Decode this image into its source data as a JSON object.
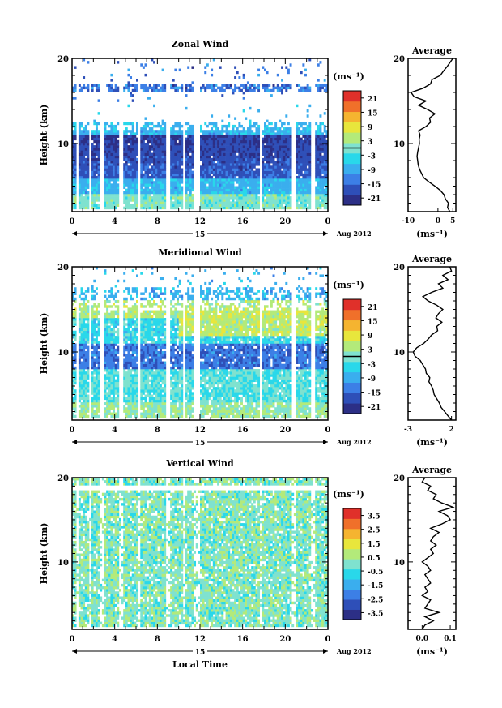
{
  "figure": {
    "xlabel": "Local Time",
    "ylabel": "Height (km)",
    "date_label": "Aug 2012",
    "day_label": "15",
    "unit_label": "(ms⁻¹)",
    "avg_title": "Average"
  },
  "chart_data": [
    {
      "type": "heatmap",
      "title": "Zonal Wind",
      "xlabel": "",
      "ylabel": "Height (km)",
      "xlim": [
        0,
        24
      ],
      "ylim": [
        2,
        20
      ],
      "xticks": [
        "0",
        "4",
        "8",
        "12",
        "16",
        "20",
        "0"
      ],
      "yticks": [
        {
          "v": 10,
          "label": "10"
        },
        {
          "v": 20,
          "label": "20"
        }
      ],
      "colorbar": {
        "min": -24,
        "max": 24,
        "ticks": [
          "21",
          "15",
          "9",
          "3",
          "-3",
          "-9",
          "-15",
          "-21"
        ],
        "zero_line": 0
      },
      "profile_title": "Average",
      "profile_xlim": [
        -10,
        6
      ],
      "profile_xticks": [
        "-10",
        "0",
        "5"
      ],
      "profile_yticks": [
        "10",
        "20"
      ],
      "profile": {
        "height": [
          2,
          2.5,
          3,
          3.5,
          4,
          4.5,
          5,
          5.5,
          6,
          6.5,
          7,
          7.5,
          8,
          8.5,
          9,
          9.5,
          10,
          10.5,
          11,
          11.5,
          12,
          12.5,
          13,
          13.5,
          14,
          14.5,
          15,
          15.5,
          16,
          16.5,
          17,
          17.5,
          18,
          18.5,
          19,
          19.5,
          20
        ],
        "value": [
          4.0,
          3.2,
          3.5,
          2.5,
          2.0,
          0.8,
          -1.0,
          -3.0,
          -4.8,
          -5.5,
          -6.2,
          -6.6,
          -6.8,
          -7.0,
          -6.8,
          -6.5,
          -6.2,
          -6.3,
          -6.0,
          -6.5,
          -4.0,
          -2.5,
          -2.8,
          -1.0,
          -3.5,
          -6.5,
          -4.0,
          -8.0,
          -9.0,
          -5.0,
          -2.5,
          -2.0,
          0.8,
          1.8,
          3.0,
          4.0,
          5.0
        ]
      }
    },
    {
      "type": "heatmap",
      "title": "Meridional Wind",
      "xlabel": "",
      "ylabel": "Height (km)",
      "xlim": [
        0,
        24
      ],
      "ylim": [
        2,
        20
      ],
      "xticks": [
        "0",
        "4",
        "8",
        "12",
        "16",
        "20",
        "0"
      ],
      "yticks": [
        {
          "v": 10,
          "label": "10"
        },
        {
          "v": 20,
          "label": "20"
        }
      ],
      "colorbar": {
        "min": -24,
        "max": 24,
        "ticks": [
          "21",
          "15",
          "9",
          "3",
          "-3",
          "-9",
          "-15",
          "-21"
        ],
        "zero_line": 0
      },
      "profile_title": "Average",
      "profile_xlim": [
        -3,
        2.5
      ],
      "profile_xticks": [
        "-3",
        "2"
      ],
      "profile_yticks": [
        "10",
        "20"
      ],
      "profile": {
        "height": [
          2,
          2.5,
          3,
          3.5,
          4,
          4.5,
          5,
          5.5,
          6,
          6.5,
          7,
          7.5,
          8,
          8.5,
          9,
          9.5,
          10,
          10.5,
          11,
          11.5,
          12,
          12.5,
          13,
          13.5,
          14,
          14.5,
          15,
          15.5,
          16,
          16.5,
          17,
          17.5,
          18,
          18.5,
          19,
          19.5,
          20
        ],
        "value": [
          2.0,
          1.6,
          1.2,
          0.8,
          0.6,
          0.3,
          0.0,
          -0.1,
          -0.3,
          -0.6,
          -0.5,
          -0.9,
          -1.0,
          -1.3,
          -1.6,
          -2.2,
          -2.4,
          -2.0,
          -1.2,
          -0.7,
          -0.3,
          0.4,
          0.3,
          0.9,
          0.2,
          0.5,
          1.0,
          0.3,
          -0.7,
          -1.3,
          -0.3,
          1.0,
          0.5,
          1.6,
          1.0,
          2.0,
          1.8
        ]
      }
    },
    {
      "type": "heatmap",
      "title": "Vertical Wind",
      "xlabel": "Local Time",
      "ylabel": "Height (km)",
      "xlim": [
        0,
        24
      ],
      "ylim": [
        2,
        20
      ],
      "xticks": [
        "0",
        "4",
        "8",
        "12",
        "16",
        "20",
        "0"
      ],
      "yticks": [
        {
          "v": 10,
          "label": "10"
        },
        {
          "v": 20,
          "label": "20"
        }
      ],
      "colorbar": {
        "min": -4,
        "max": 4,
        "ticks": [
          "3.5",
          "2.5",
          "1.5",
          "0.5",
          "-0.5",
          "-1.5",
          "-2.5",
          "-3.5"
        ],
        "zero_line": null
      },
      "profile_title": "Average",
      "profile_xlim": [
        -0.05,
        0.12
      ],
      "profile_xticks": [
        "0.0",
        "0.1"
      ],
      "profile_yticks": [
        "10",
        "20"
      ],
      "profile": {
        "height": [
          2,
          2.5,
          3,
          3.5,
          4,
          4.5,
          5,
          5.5,
          6,
          6.5,
          7,
          7.5,
          8,
          8.5,
          9,
          9.5,
          10,
          10.5,
          11,
          11.5,
          12,
          12.5,
          13,
          13.5,
          14,
          14.5,
          15,
          15.5,
          16,
          16.5,
          17,
          17.5,
          18,
          18.5,
          19,
          19.5,
          20
        ],
        "value": [
          0.0,
          0.01,
          0.04,
          0.01,
          0.06,
          0.01,
          0.02,
          0.03,
          0.0,
          0.02,
          0.01,
          0.03,
          0.02,
          0.01,
          0.03,
          0.02,
          0.0,
          0.02,
          0.04,
          0.03,
          0.05,
          0.03,
          0.04,
          0.06,
          0.03,
          0.07,
          0.1,
          0.09,
          0.06,
          0.11,
          0.07,
          0.04,
          0.05,
          0.02,
          0.03,
          0.0,
          0.01
        ]
      }
    }
  ]
}
